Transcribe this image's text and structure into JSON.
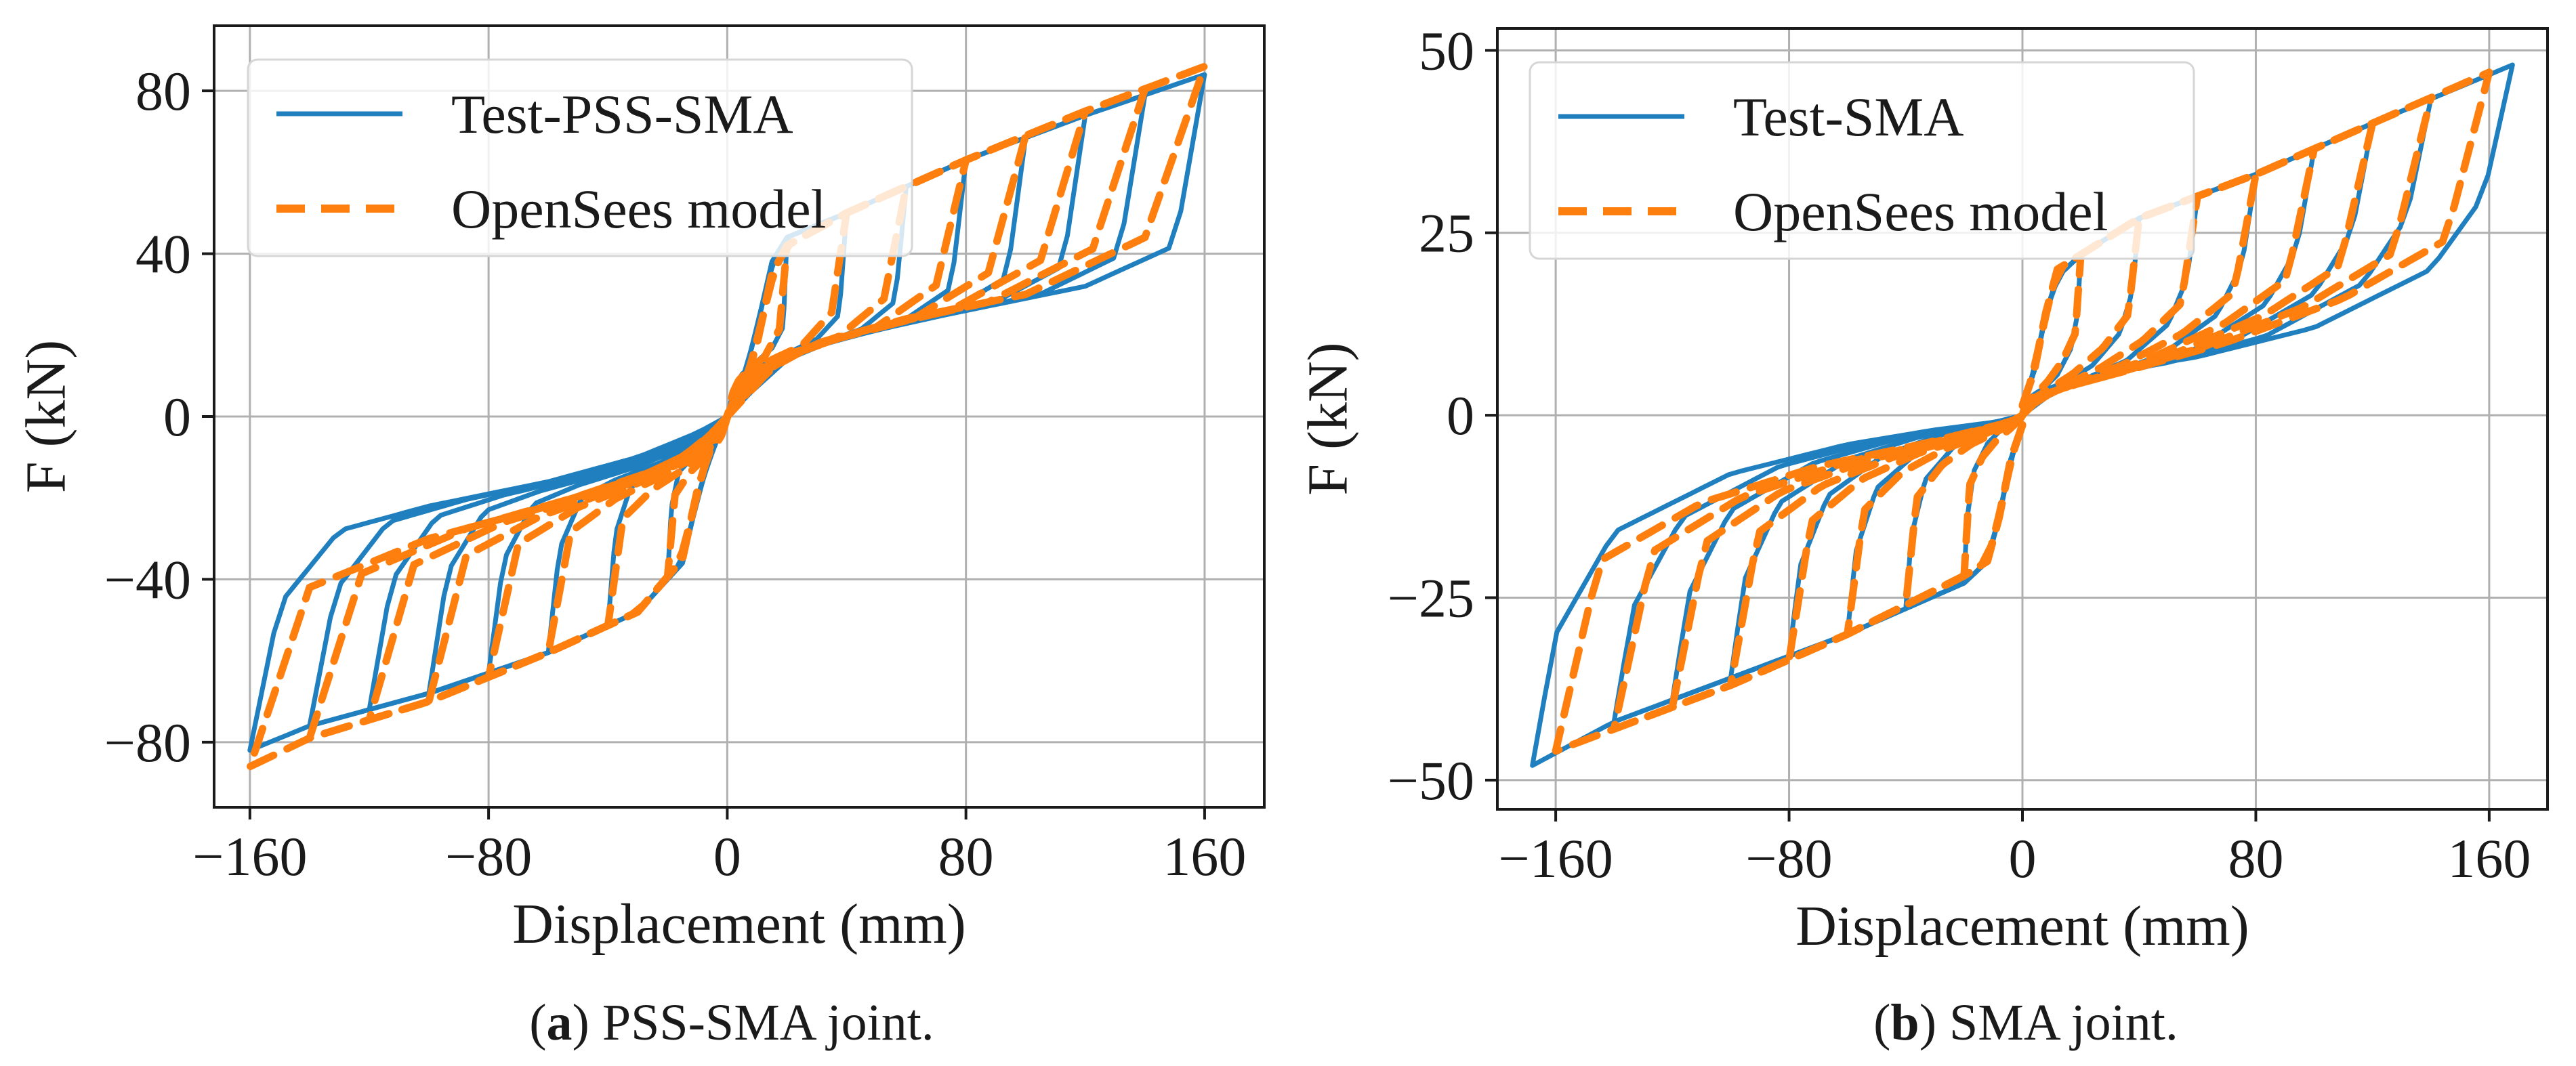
{
  "figure": {
    "panels": [
      {
        "caption_letter": "a",
        "caption_text": " PSS-SMA joint.",
        "caption_open": "(",
        "caption_close": ")"
      },
      {
        "caption_letter": "b",
        "caption_text": " SMA joint.",
        "caption_open": "(",
        "caption_close": ")"
      }
    ]
  },
  "colors": {
    "test": "#1f7fbf",
    "model": "#ff7f0e",
    "grid": "#b0b0b0",
    "axis": "#1a1a1a"
  },
  "chart_data": [
    {
      "type": "line",
      "title": "",
      "xlabel": "Displacement (mm)",
      "ylabel": "F (kN)",
      "xlim": [
        -172,
        180
      ],
      "ylim": [
        -96,
        96
      ],
      "xticks": [
        -160,
        -80,
        0,
        80,
        160
      ],
      "xtick_labels": [
        "−160",
        "−80",
        "0",
        "80",
        "160"
      ],
      "yticks": [
        -80,
        -40,
        0,
        40,
        80
      ],
      "ytick_labels": [
        "−80",
        "−40",
        "0",
        "40",
        "80"
      ],
      "grid": true,
      "legend_position": "top-left",
      "series": [
        {
          "name": "Test-PSS-SMA",
          "style": "solid",
          "color": "#1f7fbf",
          "amplitudes": [
            20,
            40,
            60,
            80,
            100,
            120,
            140,
            160
          ],
          "envelope_positive": [
            [
              -2,
              -2
            ],
            [
              5,
              8
            ],
            [
              10,
              22
            ],
            [
              15,
              38
            ],
            [
              20,
              44
            ],
            [
              40,
              50
            ],
            [
              80,
              63
            ],
            [
              120,
              74
            ],
            [
              160,
              84
            ]
          ],
          "unloading_positive": [
            [
              160,
              84
            ],
            [
              150,
              42
            ],
            [
              120,
              32
            ],
            [
              80,
              26
            ],
            [
              40,
              20
            ],
            [
              20,
              14
            ],
            [
              8,
              6
            ],
            [
              0,
              0
            ]
          ],
          "envelope_negative": [
            [
              2,
              2
            ],
            [
              -5,
              -8
            ],
            [
              -10,
              -20
            ],
            [
              -15,
              -36
            ],
            [
              -30,
              -48
            ],
            [
              -60,
              -58
            ],
            [
              -100,
              -68
            ],
            [
              -140,
              -76
            ],
            [
              -160,
              -82
            ]
          ],
          "unloading_negative": [
            [
              -160,
              -82
            ],
            [
              -150,
              -46
            ],
            [
              -130,
              -28
            ],
            [
              -100,
              -22
            ],
            [
              -60,
              -16
            ],
            [
              -30,
              -10
            ],
            [
              -10,
              -4
            ],
            [
              0,
              0
            ]
          ]
        },
        {
          "name": "OpenSees model",
          "style": "dashed",
          "color": "#ff7f0e",
          "amplitudes": [
            20,
            40,
            60,
            80,
            100,
            120,
            140,
            160
          ],
          "envelope_positive": [
            [
              -2,
              -2
            ],
            [
              5,
              6
            ],
            [
              10,
              18
            ],
            [
              15,
              35
            ],
            [
              20,
              42
            ],
            [
              40,
              50
            ],
            [
              80,
              63
            ],
            [
              120,
              75
            ],
            [
              160,
              86
            ]
          ],
          "unloading_positive": [
            [
              160,
              86
            ],
            [
              140,
              44
            ],
            [
              100,
              30
            ],
            [
              60,
              24
            ],
            [
              30,
              18
            ],
            [
              15,
              12
            ],
            [
              5,
              4
            ],
            [
              0,
              0
            ]
          ],
          "envelope_negative": [
            [
              2,
              2
            ],
            [
              -5,
              -6
            ],
            [
              -10,
              -18
            ],
            [
              -15,
              -35
            ],
            [
              -30,
              -48
            ],
            [
              -60,
              -58
            ],
            [
              -100,
              -70
            ],
            [
              -140,
              -79
            ],
            [
              -160,
              -86
            ]
          ],
          "unloading_negative": [
            [
              -160,
              -86
            ],
            [
              -140,
              -42
            ],
            [
              -100,
              -30
            ],
            [
              -60,
              -22
            ],
            [
              -30,
              -15
            ],
            [
              -15,
              -10
            ],
            [
              -5,
              -4
            ],
            [
              0,
              0
            ]
          ]
        }
      ]
    },
    {
      "type": "line",
      "title": "",
      "xlabel": "Displacement (mm)",
      "ylabel": "F (kN)",
      "xlim": [
        -180,
        180
      ],
      "ylim": [
        -54,
        53
      ],
      "xticks": [
        -160,
        -80,
        0,
        80,
        160
      ],
      "xtick_labels": [
        "−160",
        "−80",
        "0",
        "80",
        "160"
      ],
      "yticks": [
        -50,
        -25,
        0,
        25,
        50
      ],
      "ytick_labels": [
        "−50",
        "−25",
        "0",
        "25",
        "50"
      ],
      "grid": true,
      "legend_position": "top-left",
      "series": [
        {
          "name": "Test-SMA",
          "style": "solid",
          "color": "#1f7fbf",
          "amplitudes": [
            20,
            40,
            60,
            80,
            100,
            120,
            140,
            168
          ],
          "envelope_positive": [
            [
              -2,
              -1
            ],
            [
              4,
              6
            ],
            [
              8,
              14
            ],
            [
              12,
              19
            ],
            [
              20,
              22
            ],
            [
              40,
              27
            ],
            [
              80,
              33
            ],
            [
              120,
              40
            ],
            [
              168,
              48
            ]
          ],
          "unloading_positive": [
            [
              168,
              48
            ],
            [
              158,
              30
            ],
            [
              140,
              20
            ],
            [
              100,
              12
            ],
            [
              60,
              8
            ],
            [
              30,
              6
            ],
            [
              10,
              3
            ],
            [
              0,
              0
            ]
          ],
          "envelope_negative": [
            [
              2,
              1
            ],
            [
              -4,
              -6
            ],
            [
              -8,
              -14
            ],
            [
              -12,
              -20
            ],
            [
              -20,
              -23
            ],
            [
              -60,
              -30
            ],
            [
              -100,
              -36
            ],
            [
              -140,
              -42
            ],
            [
              -168,
              -48
            ]
          ],
          "unloading_negative": [
            [
              -168,
              -48
            ],
            [
              -160,
              -30
            ],
            [
              -140,
              -16
            ],
            [
              -100,
              -8
            ],
            [
              -60,
              -4
            ],
            [
              -30,
              -2
            ],
            [
              -10,
              -1
            ],
            [
              0,
              0
            ]
          ]
        },
        {
          "name": "OpenSees model",
          "style": "dashed",
          "color": "#ff7f0e",
          "amplitudes": [
            20,
            40,
            60,
            80,
            100,
            120,
            140,
            160
          ],
          "envelope_positive": [
            [
              -2,
              -1
            ],
            [
              4,
              6
            ],
            [
              8,
              14
            ],
            [
              12,
              20
            ],
            [
              20,
              22
            ],
            [
              40,
              27
            ],
            [
              80,
              33
            ],
            [
              120,
              40
            ],
            [
              160,
              47
            ]
          ],
          "unloading_positive": [
            [
              160,
              47
            ],
            [
              145,
              24
            ],
            [
              110,
              16
            ],
            [
              70,
              10
            ],
            [
              35,
              6
            ],
            [
              15,
              4
            ],
            [
              5,
              2
            ],
            [
              0,
              0
            ]
          ],
          "envelope_negative": [
            [
              2,
              1
            ],
            [
              -4,
              -6
            ],
            [
              -8,
              -14
            ],
            [
              -12,
              -20
            ],
            [
              -20,
              -22
            ],
            [
              -60,
              -30
            ],
            [
              -100,
              -37
            ],
            [
              -140,
              -43
            ],
            [
              -160,
              -46
            ]
          ],
          "unloading_negative": [
            [
              -160,
              -46
            ],
            [
              -145,
              -20
            ],
            [
              -110,
              -12
            ],
            [
              -70,
              -7
            ],
            [
              -35,
              -4
            ],
            [
              -15,
              -2
            ],
            [
              -5,
              -1
            ],
            [
              0,
              0
            ]
          ]
        }
      ]
    }
  ]
}
